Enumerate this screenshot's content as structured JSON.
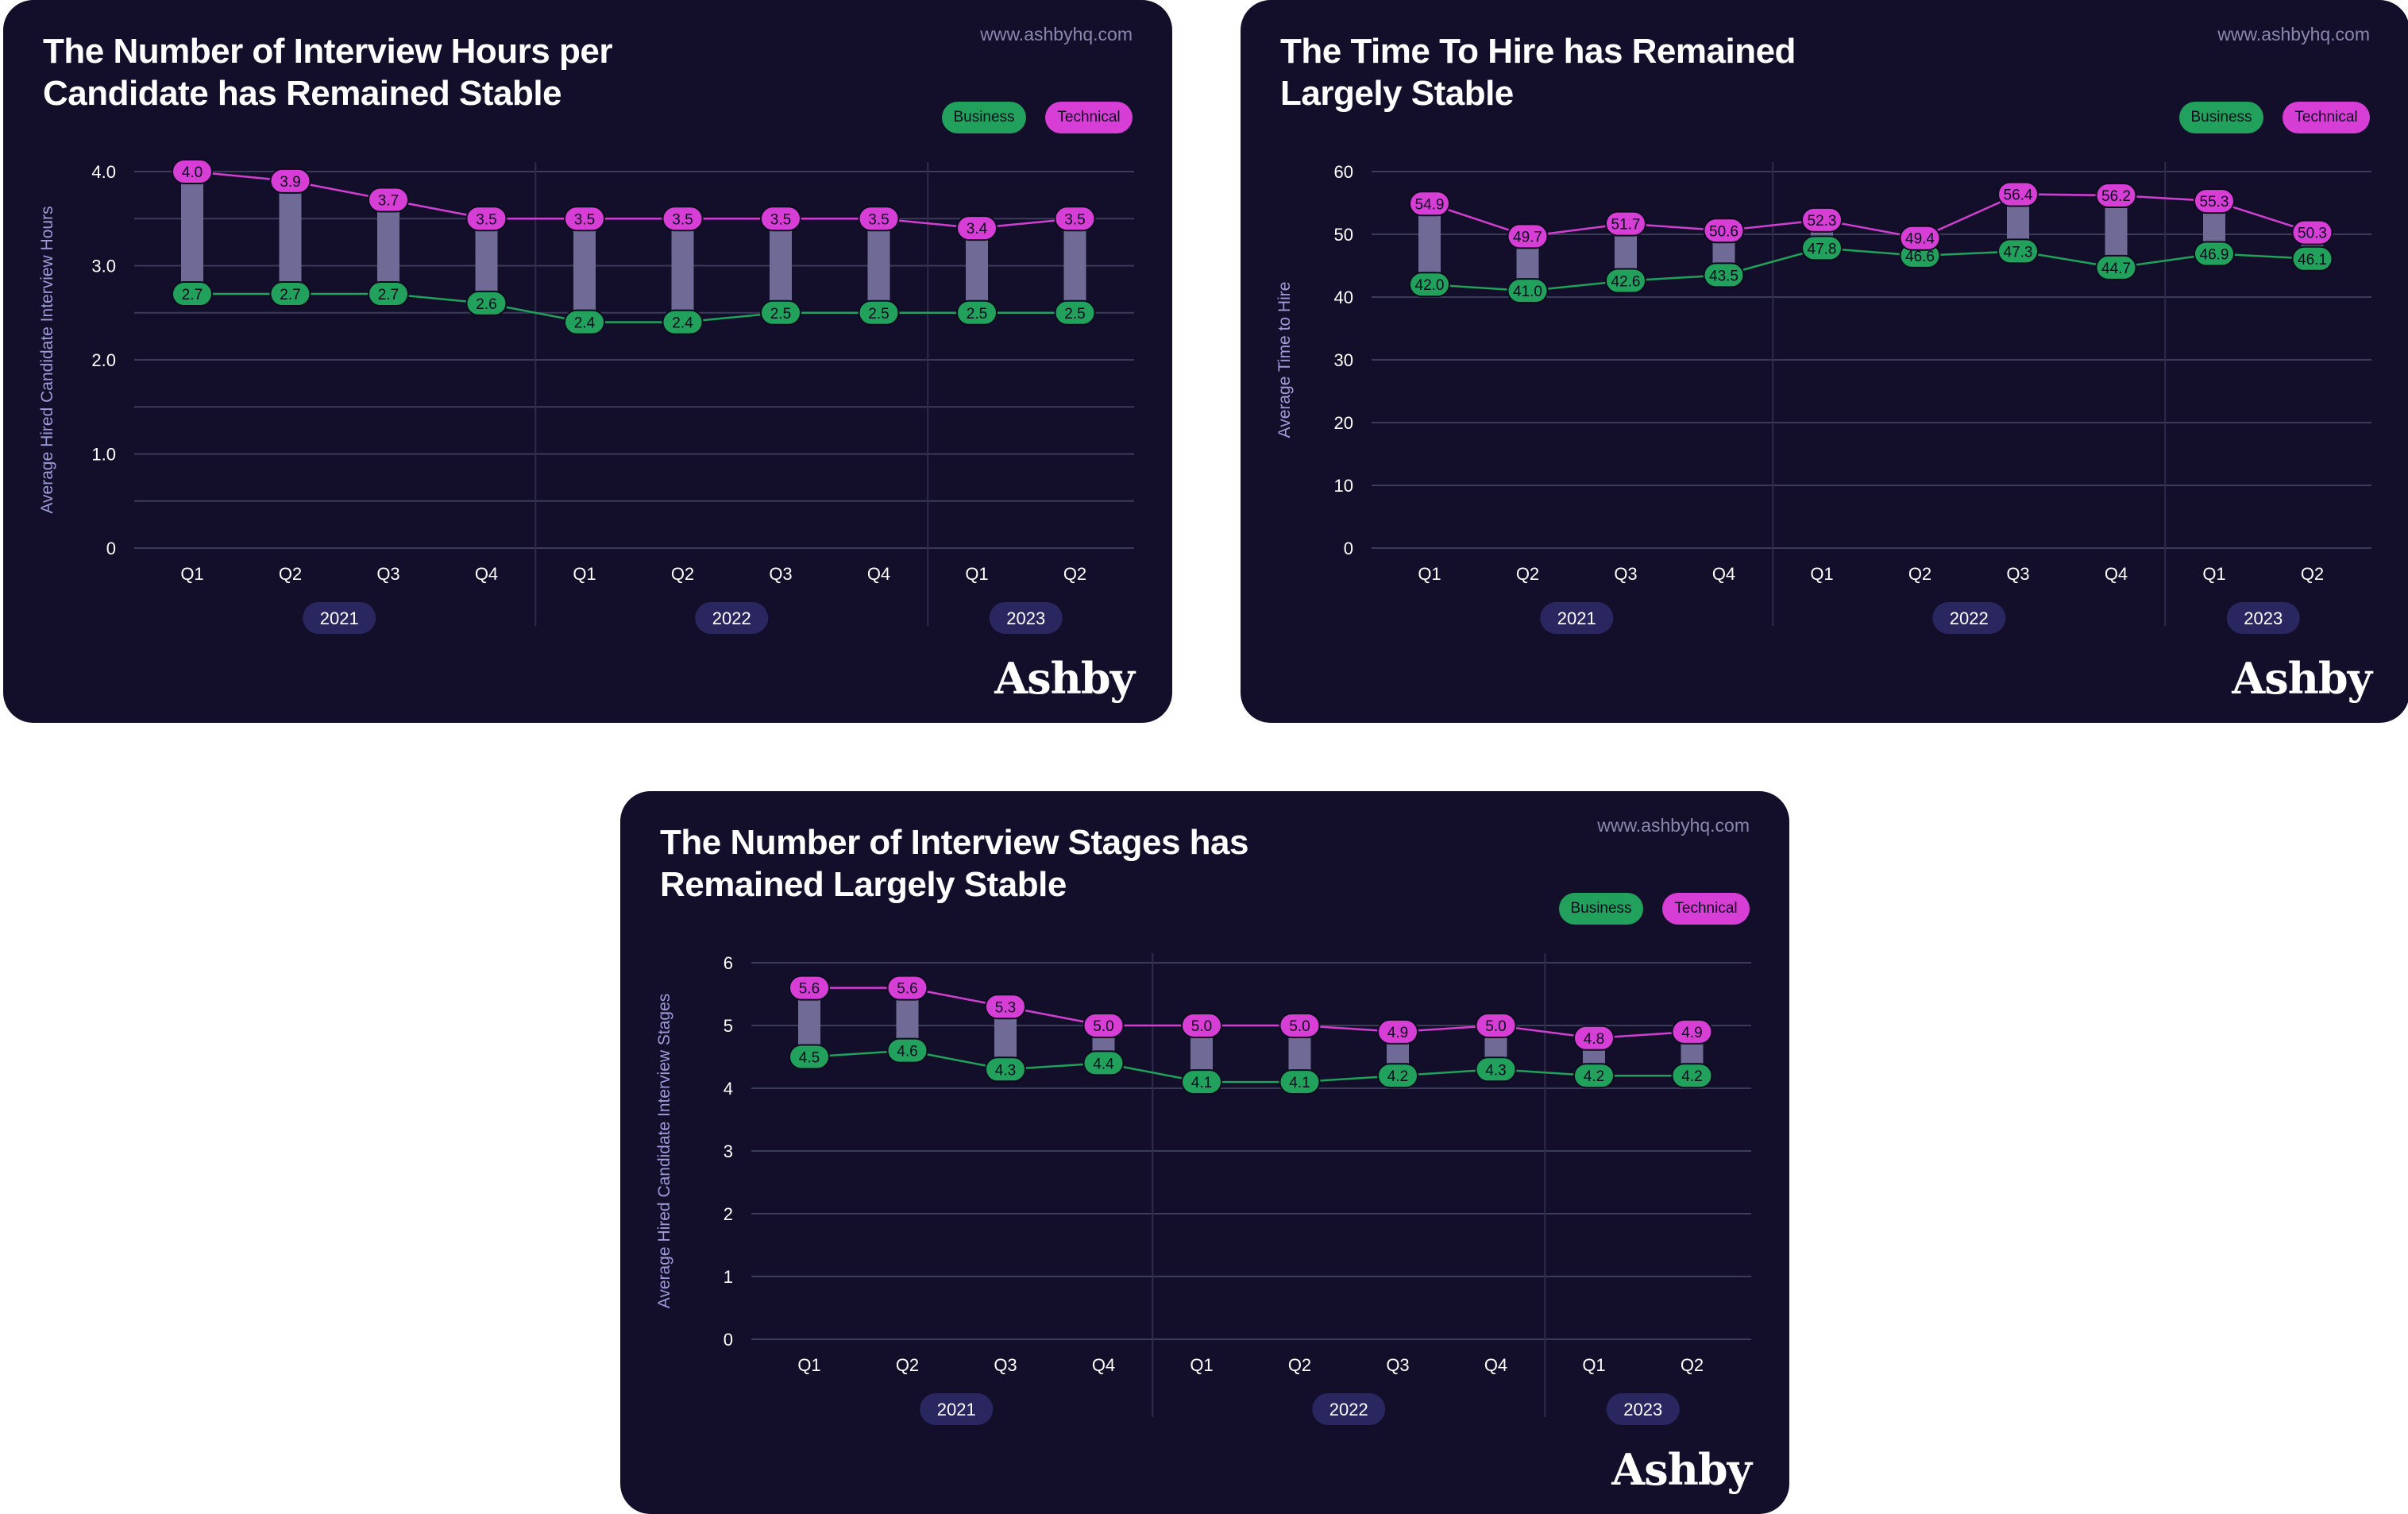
{
  "theme": {
    "card_bg": "#130f2b",
    "grid": "#3b3a57",
    "separator": "#2e2c4a",
    "bar": "#6f6b96",
    "business": "#1fa25a",
    "business_label_bg": "#22a15c",
    "technical": "#d13fd1",
    "technical_label_bg": "#d63ed6",
    "text": "#ffffff",
    "muted": "#8a87ae",
    "axis_label": "#9e9bd9",
    "year_pill": "#2a2660"
  },
  "brand": "Ashby",
  "url": "www.ashbyhq.com",
  "legend": {
    "business": "Business",
    "technical": "Technical"
  },
  "chart_data": [
    {
      "type": "line",
      "title_lines": [
        "The Number of Interview Hours per",
        "Candidate has Remained Stable"
      ],
      "ylabel": "Average Hired Candidate Interview Hours",
      "ylim": [
        0,
        4.0
      ],
      "y_ticks": [
        "0",
        "",
        "1.0",
        "",
        "2.0",
        "",
        "3.0",
        "",
        "4.0"
      ],
      "categories": [
        "Q1",
        "Q2",
        "Q3",
        "Q4",
        "Q1",
        "Q2",
        "Q3",
        "Q4",
        "Q1",
        "Q2"
      ],
      "years": [
        {
          "label": "2021",
          "from": 0,
          "to": 3
        },
        {
          "label": "2022",
          "from": 4,
          "to": 7
        },
        {
          "label": "2023",
          "from": 8,
          "to": 9
        }
      ],
      "series": [
        {
          "name": "Business",
          "values": [
            2.7,
            2.7,
            2.7,
            2.6,
            2.4,
            2.4,
            2.5,
            2.5,
            2.5,
            2.5
          ],
          "labels": [
            "2.7",
            "2.7",
            "2.7",
            "2.6",
            "2.4",
            "2.4",
            "2.5",
            "2.5",
            "2.5",
            "2.5"
          ]
        },
        {
          "name": "Technical",
          "values": [
            4.0,
            3.9,
            3.7,
            3.5,
            3.5,
            3.5,
            3.5,
            3.5,
            3.4,
            3.5
          ],
          "labels": [
            "4.0",
            "3.9",
            "3.7",
            "3.5",
            "3.5",
            "3.5",
            "3.5",
            "3.5",
            "3.4",
            "3.5"
          ]
        }
      ]
    },
    {
      "type": "line",
      "title_lines": [
        "The Time To Hire has Remained",
        "Largely Stable"
      ],
      "ylabel": "Average Time to Hire",
      "ylim": [
        0,
        60
      ],
      "y_ticks": [
        "0",
        "10",
        "20",
        "30",
        "40",
        "50",
        "60"
      ],
      "categories": [
        "Q1",
        "Q2",
        "Q3",
        "Q4",
        "Q1",
        "Q2",
        "Q3",
        "Q4",
        "Q1",
        "Q2"
      ],
      "years": [
        {
          "label": "2021",
          "from": 0,
          "to": 3
        },
        {
          "label": "2022",
          "from": 4,
          "to": 7
        },
        {
          "label": "2023",
          "from": 8,
          "to": 9
        }
      ],
      "series": [
        {
          "name": "Business",
          "values": [
            42.0,
            41.0,
            42.6,
            43.5,
            47.8,
            46.6,
            47.3,
            44.7,
            46.9,
            46.1
          ],
          "labels": [
            "42.0",
            "41.0",
            "42.6",
            "43.5",
            "47.8",
            "46.6",
            "47.3",
            "44.7",
            "46.9",
            "46.1"
          ]
        },
        {
          "name": "Technical",
          "values": [
            54.9,
            49.7,
            51.7,
            50.6,
            52.3,
            49.4,
            56.4,
            56.2,
            55.3,
            50.3
          ],
          "labels": [
            "54.9",
            "49.7",
            "51.7",
            "50.6",
            "52.3",
            "49.4",
            "56.4",
            "56.2",
            "55.3",
            "50.3"
          ]
        }
      ]
    },
    {
      "type": "line",
      "title_lines": [
        "The Number of Interview Stages has",
        "Remained Largely Stable"
      ],
      "ylabel": "Average Hired Candidate Interview Stages",
      "ylim": [
        0,
        6
      ],
      "y_ticks": [
        "0",
        "1",
        "2",
        "3",
        "4",
        "5",
        "6"
      ],
      "categories": [
        "Q1",
        "Q2",
        "Q3",
        "Q4",
        "Q1",
        "Q2",
        "Q3",
        "Q4",
        "Q1",
        "Q2"
      ],
      "years": [
        {
          "label": "2021",
          "from": 0,
          "to": 3
        },
        {
          "label": "2022",
          "from": 4,
          "to": 7
        },
        {
          "label": "2023",
          "from": 8,
          "to": 9
        }
      ],
      "series": [
        {
          "name": "Business",
          "values": [
            4.5,
            4.6,
            4.3,
            4.4,
            4.1,
            4.1,
            4.2,
            4.3,
            4.2,
            4.2
          ],
          "labels": [
            "4.5",
            "4.6",
            "4.3",
            "4.4",
            "4.1",
            "4.1",
            "4.2",
            "4.3",
            "4.2",
            "4.2"
          ]
        },
        {
          "name": "Technical",
          "values": [
            5.6,
            5.6,
            5.3,
            5.0,
            5.0,
            5.0,
            4.9,
            5.0,
            4.8,
            4.9
          ],
          "labels": [
            "5.6",
            "5.6",
            "5.3",
            "5.0",
            "5.0",
            "5.0",
            "4.9",
            "5.0",
            "4.8",
            "4.9"
          ]
        }
      ]
    }
  ]
}
